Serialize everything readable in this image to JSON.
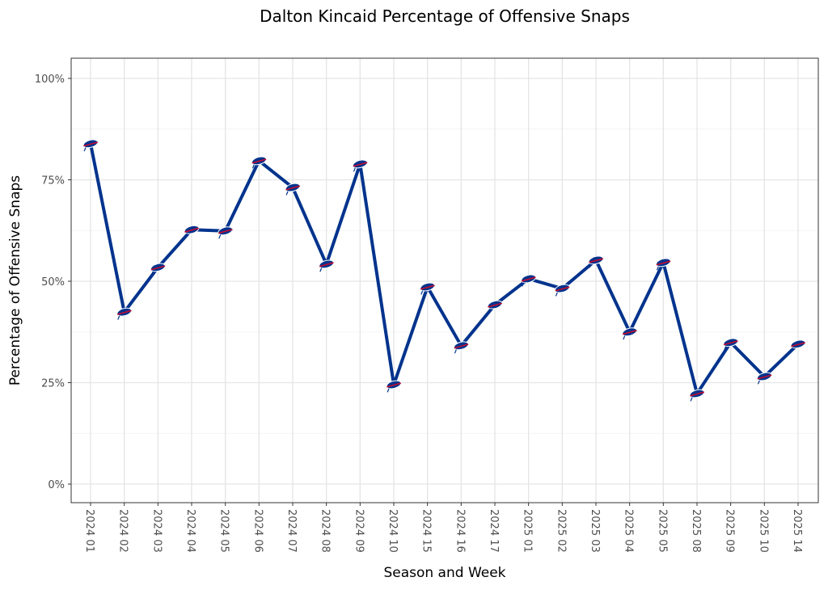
{
  "chart_data": {
    "type": "line",
    "title": "Dalton Kincaid Percentage of Offensive Snaps",
    "xlabel": "Season and Week",
    "ylabel": "Percentage of Offensive Snaps",
    "ylim": [
      0,
      100
    ],
    "yticks": [
      0,
      25,
      50,
      75,
      100
    ],
    "ytick_labels": [
      "0%",
      "25%",
      "50%",
      "75%",
      "100%"
    ],
    "grid": true,
    "categories": [
      "2024 01",
      "2024 02",
      "2024 03",
      "2024 04",
      "2024 05",
      "2024 06",
      "2024 07",
      "2024 08",
      "2024 09",
      "2024 10",
      "2024 15",
      "2024 16",
      "2024 17",
      "2025 01",
      "2025 02",
      "2025 03",
      "2025 04",
      "2025 05",
      "2025 08",
      "2025 09",
      "2025 10",
      "2025 14"
    ],
    "series": [
      {
        "name": "Dalton Kincaid",
        "color": "#00338D",
        "marker_color": "#C60C30",
        "values": [
          83.9,
          42.4,
          53.4,
          62.7,
          62.4,
          79.7,
          73.1,
          54.2,
          78.9,
          24.5,
          48.6,
          34.1,
          44.2,
          50.6,
          48.2,
          55.2,
          37.5,
          54.6,
          22.3,
          34.9,
          26.5,
          34.5
        ]
      }
    ]
  }
}
